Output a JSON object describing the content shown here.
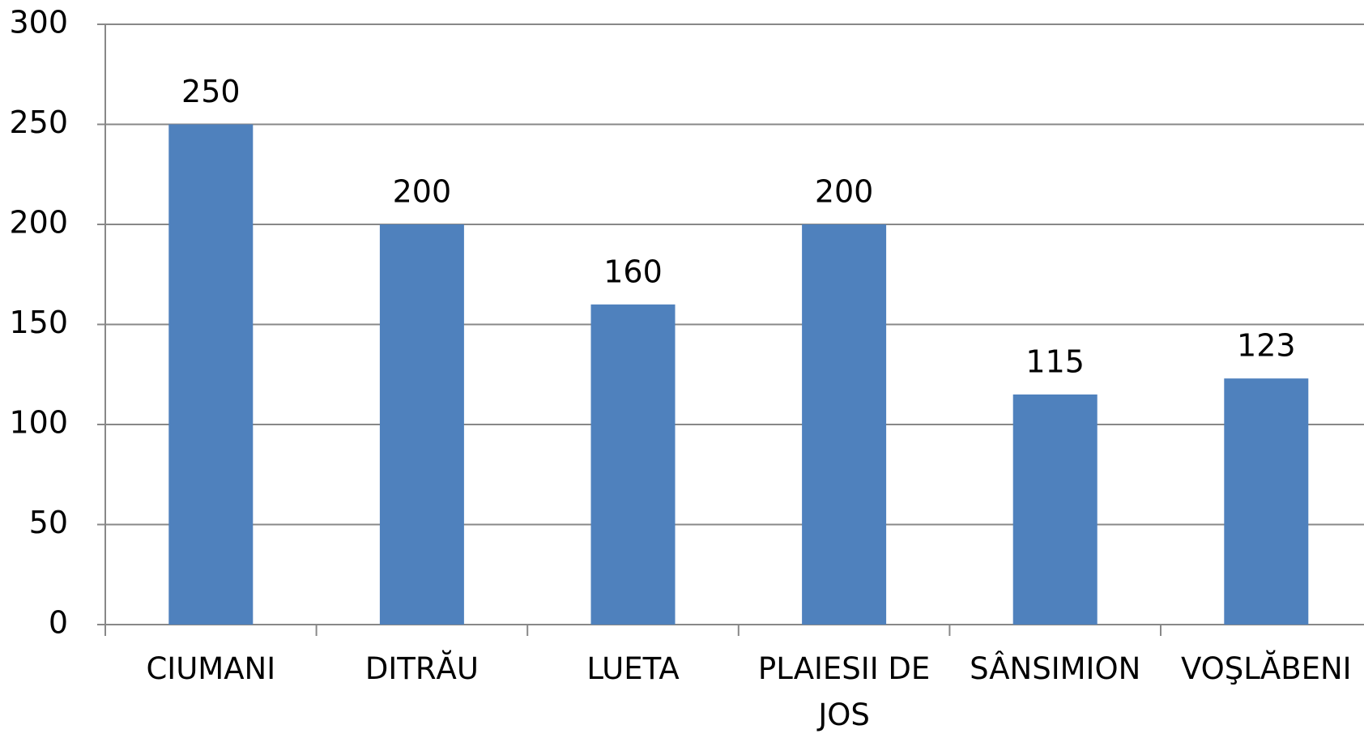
{
  "chart_data": {
    "type": "bar",
    "categories": [
      "CIUMANI",
      "DITRĂU",
      "LUETA",
      "PLAIESII DE JOS",
      "SÂNSIMION",
      "VOŞLĂBENI"
    ],
    "values": [
      250,
      200,
      160,
      200,
      115,
      123
    ],
    "color": "#4f81bd",
    "ylim": [
      0,
      300
    ],
    "yticks": [
      0,
      50,
      100,
      150,
      200,
      250,
      300
    ],
    "grid": true
  }
}
